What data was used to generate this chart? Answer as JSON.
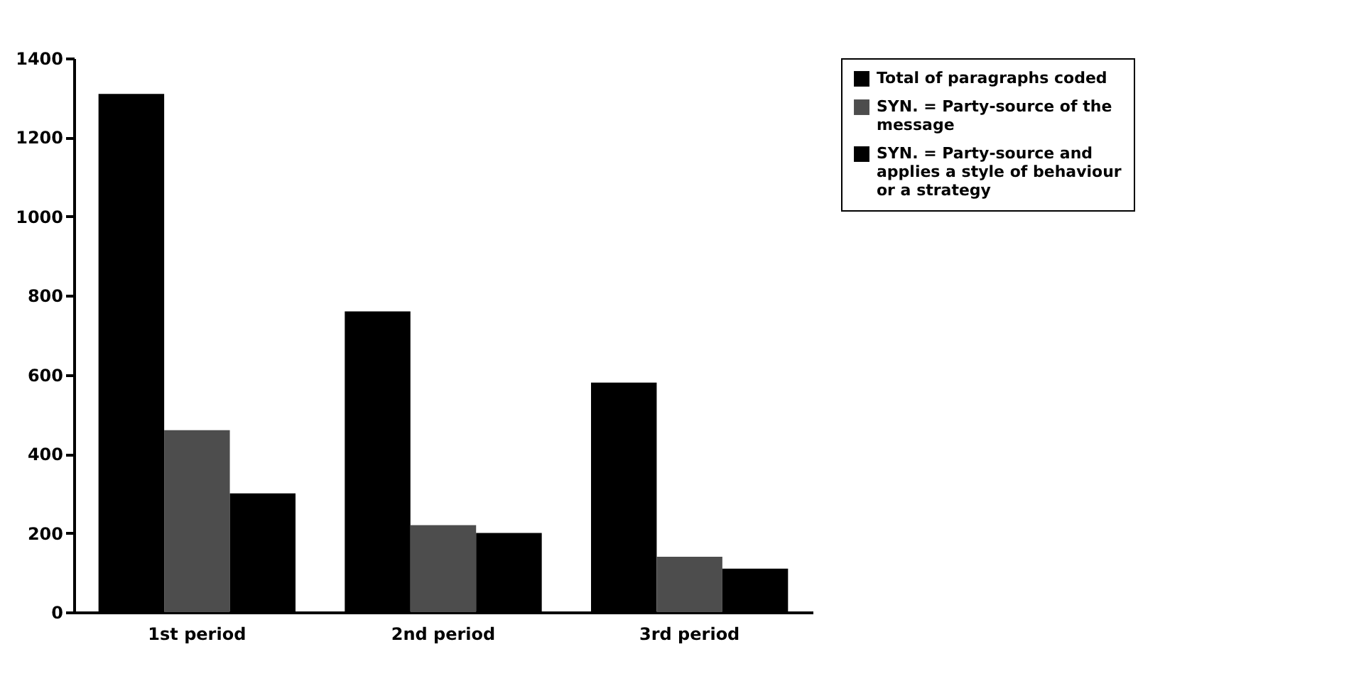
{
  "chart_data": {
    "type": "bar",
    "categories": [
      "1st period",
      "2nd period",
      "3rd period"
    ],
    "series": [
      {
        "name": "Total of paragraphs coded",
        "color": "#000000",
        "values": [
          1310,
          760,
          580
        ]
      },
      {
        "name": "SYN. = Party-source of the message",
        "color": "#4d4d4d",
        "values": [
          460,
          220,
          140
        ]
      },
      {
        "name": "SYN. = Party-source and applies a style of behaviour or a strategy",
        "color": "#000000",
        "values": [
          300,
          200,
          110
        ]
      }
    ],
    "ylim": [
      0,
      1400
    ],
    "yticks": [
      0,
      200,
      400,
      600,
      800,
      1000,
      1200,
      1400
    ],
    "grid": false,
    "legend": "right"
  }
}
